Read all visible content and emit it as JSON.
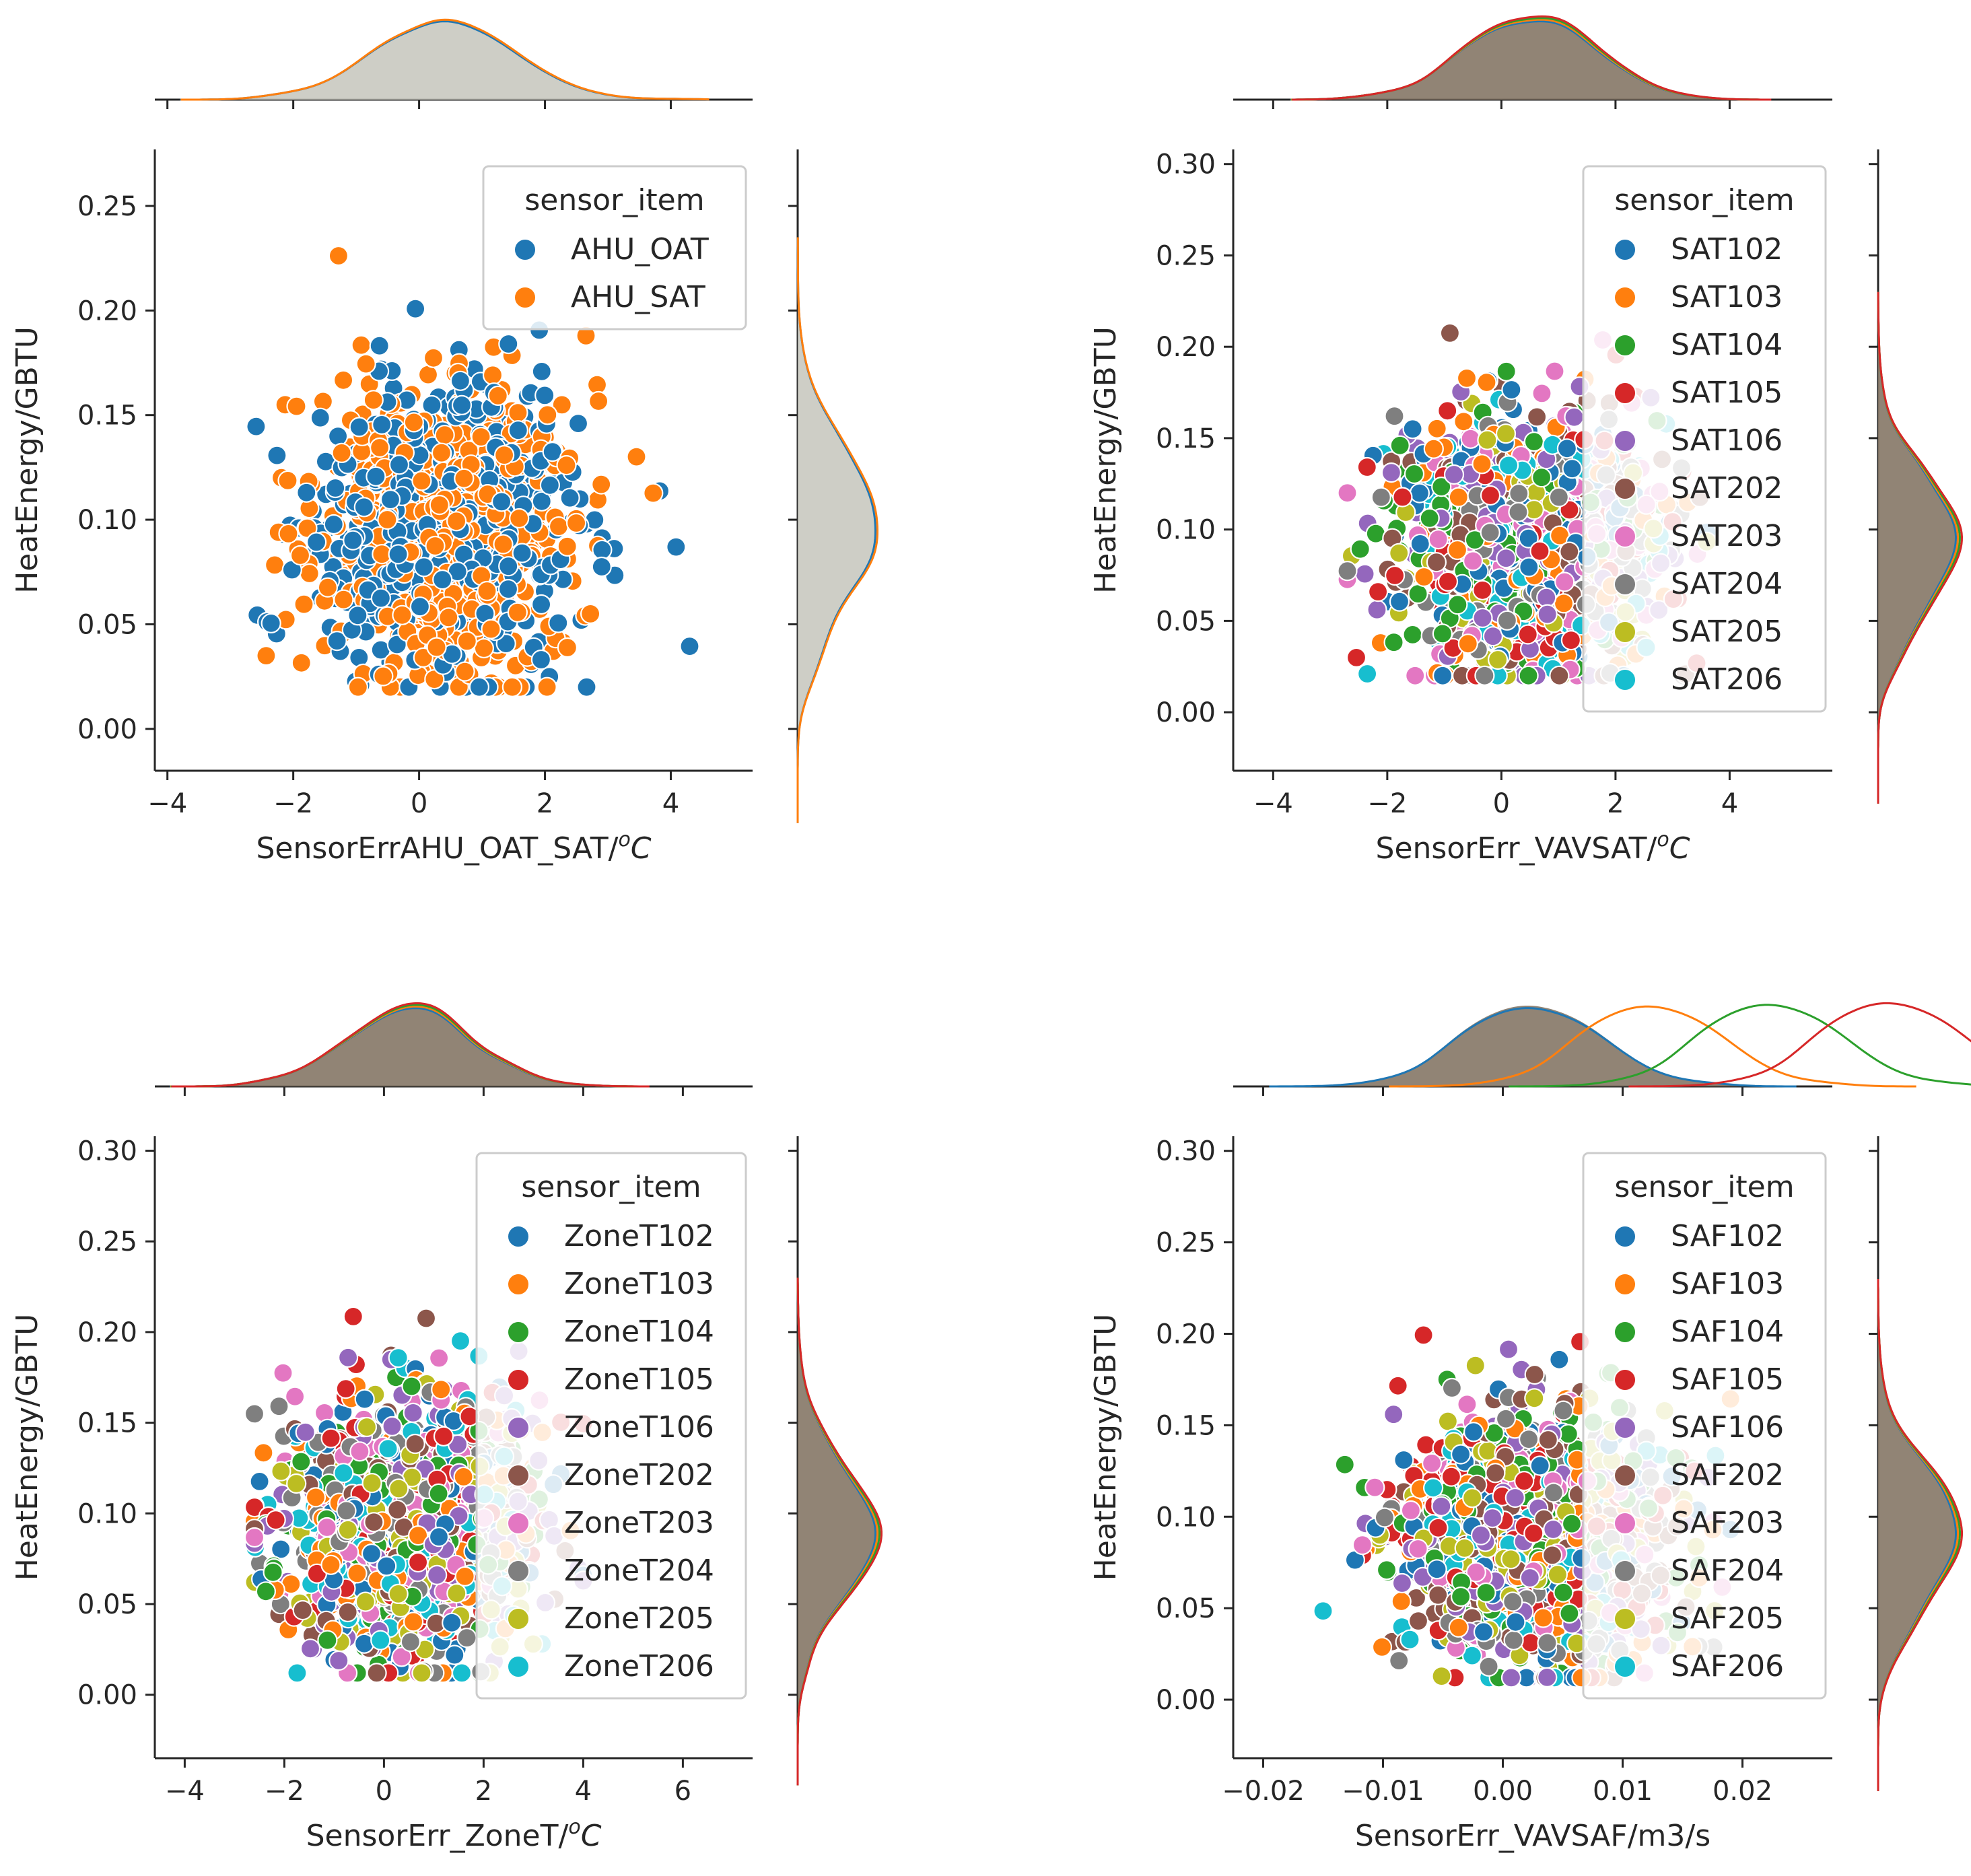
{
  "palette": {
    "blue": "#1f77b4",
    "orange": "#ff7f0e",
    "green": "#2ca02c",
    "red": "#d62728",
    "purple": "#9467bd",
    "brown": "#8c564b",
    "pink": "#e377c2",
    "gray": "#7f7f7f",
    "olive": "#bcbd22",
    "cyan": "#17becf"
  },
  "chart_data": [
    {
      "type": "scatter",
      "title": "",
      "xlabel": "SensorErrAHU_OAT_SAT/",
      "xlabel_unit": "oC",
      "xlabel_sup": "o",
      "xlabel_tail": "C",
      "ylabel": "HeatEnergy/GBTU",
      "xlim": [
        -4.2,
        5.3
      ],
      "ylim": [
        -0.02,
        0.277
      ],
      "xticks": [
        -4,
        -2,
        0,
        2,
        4
      ],
      "xtick_labels": [
        "−4",
        "−2",
        "0",
        "2",
        "4"
      ],
      "yticks": [
        0.0,
        0.05,
        0.1,
        0.15,
        0.2,
        0.25
      ],
      "ytick_labels": [
        "0.00",
        "0.05",
        "0.10",
        "0.15",
        "0.20",
        "0.25"
      ],
      "legend_title": "sensor_item",
      "legend_position": "upper-right",
      "series": [
        {
          "name": "AHU_OAT",
          "color": "#1f77b4"
        },
        {
          "name": "AHU_SAT",
          "color": "#ff7f0e"
        }
      ],
      "x_mean": 0.4,
      "x_std": 1.05,
      "x_range": [
        -2.7,
        4.3
      ],
      "y_mean": 0.095,
      "y_std": 0.035,
      "y_range": [
        0.02,
        0.24
      ],
      "marginal_fill": "#c9c9c0",
      "seed": 11
    },
    {
      "type": "scatter",
      "title": "",
      "xlabel": "SensorErr_VAVSAT/",
      "xlabel_unit": "oC",
      "xlabel_sup": "o",
      "xlabel_tail": "C",
      "ylabel": "HeatEnergy/GBTU",
      "xlim": [
        -4.7,
        5.8
      ],
      "ylim": [
        -0.032,
        0.308
      ],
      "xticks": [
        -4,
        -2,
        0,
        2,
        4
      ],
      "xtick_labels": [
        "−4",
        "−2",
        "0",
        "2",
        "4"
      ],
      "yticks": [
        0.0,
        0.05,
        0.1,
        0.15,
        0.2,
        0.25,
        0.3
      ],
      "ytick_labels": [
        "0.00",
        "0.05",
        "0.10",
        "0.15",
        "0.20",
        "0.25",
        "0.30"
      ],
      "legend_title": "sensor_item",
      "legend_position": "upper-right",
      "series": [
        {
          "name": "SAT102",
          "color": "#1f77b4"
        },
        {
          "name": "SAT103",
          "color": "#ff7f0e"
        },
        {
          "name": "SAT104",
          "color": "#2ca02c"
        },
        {
          "name": "SAT105",
          "color": "#d62728"
        },
        {
          "name": "SAT106",
          "color": "#9467bd"
        },
        {
          "name": "SAT202",
          "color": "#8c564b"
        },
        {
          "name": "SAT203",
          "color": "#e377c2"
        },
        {
          "name": "SAT204",
          "color": "#7f7f7f"
        },
        {
          "name": "SAT205",
          "color": "#bcbd22"
        },
        {
          "name": "SAT206",
          "color": "#17becf"
        }
      ],
      "x_mean": 0.5,
      "x_std": 1.05,
      "x_range": [
        -2.7,
        3.6
      ],
      "y_mean": 0.09,
      "y_std": 0.035,
      "y_range": [
        0.02,
        0.26
      ],
      "marginal_fill": "#857766",
      "seed": 23
    },
    {
      "type": "scatter",
      "title": "",
      "xlabel": "SensorErr_ZoneT/",
      "xlabel_unit": "oC",
      "xlabel_sup": "o",
      "xlabel_tail": "C",
      "ylabel": "HeatEnergy/GBTU",
      "xlim": [
        -4.6,
        7.4
      ],
      "ylim": [
        -0.035,
        0.308
      ],
      "xticks": [
        -4,
        -2,
        0,
        2,
        4,
        6
      ],
      "xtick_labels": [
        "−4",
        "−2",
        "0",
        "2",
        "4",
        "6"
      ],
      "yticks": [
        0.0,
        0.05,
        0.1,
        0.15,
        0.2,
        0.25,
        0.3
      ],
      "ytick_labels": [
        "0.00",
        "0.05",
        "0.10",
        "0.15",
        "0.20",
        "0.25",
        "0.30"
      ],
      "legend_title": "sensor_item",
      "legend_position": "upper-right",
      "series": [
        {
          "name": "ZoneT102",
          "color": "#1f77b4"
        },
        {
          "name": "ZoneT103",
          "color": "#ff7f0e"
        },
        {
          "name": "ZoneT104",
          "color": "#2ca02c"
        },
        {
          "name": "ZoneT105",
          "color": "#d62728"
        },
        {
          "name": "ZoneT106",
          "color": "#9467bd"
        },
        {
          "name": "ZoneT202",
          "color": "#8c564b"
        },
        {
          "name": "ZoneT203",
          "color": "#e377c2"
        },
        {
          "name": "ZoneT204",
          "color": "#7f7f7f"
        },
        {
          "name": "ZoneT205",
          "color": "#bcbd22"
        },
        {
          "name": "ZoneT206",
          "color": "#17becf"
        }
      ],
      "x_mean": 0.5,
      "x_std": 1.2,
      "x_range": [
        -2.6,
        4.0
      ],
      "y_mean": 0.09,
      "y_std": 0.035,
      "y_range": [
        0.012,
        0.26
      ],
      "marginal_fill": "#857766",
      "seed": 37
    },
    {
      "type": "scatter",
      "title": "",
      "xlabel": "SensorErr_VAVSAF/m3/s",
      "xlabel_unit": "",
      "xlabel_sup": "",
      "xlabel_tail": "",
      "ylabel": "HeatEnergy/GBTU",
      "xlim": [
        -0.0225,
        0.0275
      ],
      "ylim": [
        -0.032,
        0.308
      ],
      "xticks": [
        -0.02,
        -0.01,
        0.0,
        0.01,
        0.02
      ],
      "xtick_labels": [
        "−0.02",
        "−0.01",
        "0.00",
        "0.01",
        "0.02"
      ],
      "yticks": [
        0.0,
        0.05,
        0.1,
        0.15,
        0.2,
        0.25,
        0.3
      ],
      "ytick_labels": [
        "0.00",
        "0.05",
        "0.10",
        "0.15",
        "0.20",
        "0.25",
        "0.30"
      ],
      "legend_title": "sensor_item",
      "legend_position": "upper-right",
      "series": [
        {
          "name": "SAF102",
          "color": "#1f77b4"
        },
        {
          "name": "SAF103",
          "color": "#ff7f0e"
        },
        {
          "name": "SAF104",
          "color": "#2ca02c"
        },
        {
          "name": "SAF105",
          "color": "#d62728"
        },
        {
          "name": "SAF106",
          "color": "#9467bd"
        },
        {
          "name": "SAF202",
          "color": "#8c564b"
        },
        {
          "name": "SAF203",
          "color": "#e377c2"
        },
        {
          "name": "SAF204",
          "color": "#7f7f7f"
        },
        {
          "name": "SAF205",
          "color": "#bcbd22"
        },
        {
          "name": "SAF206",
          "color": "#17becf"
        }
      ],
      "x_mean": 0.0025,
      "x_std": 0.0055,
      "x_range": [
        -0.015,
        0.019
      ],
      "y_mean": 0.09,
      "y_std": 0.035,
      "y_range": [
        0.012,
        0.26
      ],
      "marginal_fill": "#857766",
      "seed": 53
    }
  ]
}
